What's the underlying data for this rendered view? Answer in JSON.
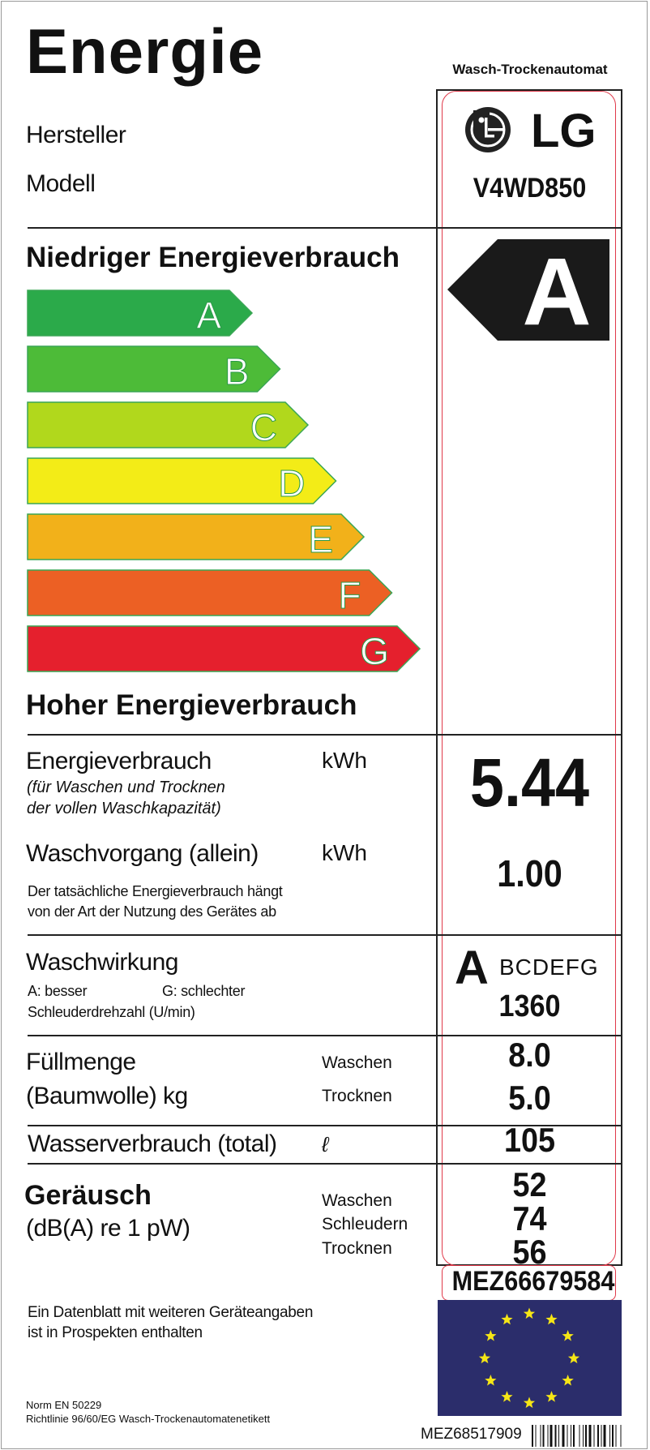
{
  "header": {
    "title": "Energie",
    "appliance_type": "Wasch-Trockenautomat"
  },
  "manufacturer": {
    "label": "Hersteller",
    "value": "LG"
  },
  "model": {
    "label": "Modell",
    "value": "V4WD850"
  },
  "scale": {
    "top_label": "Niedriger Energieverbrauch",
    "bottom_label": "Hoher Energieverbrauch",
    "classes": [
      {
        "letter": "A",
        "color": "#2baa4a"
      },
      {
        "letter": "B",
        "color": "#4dbb38"
      },
      {
        "letter": "C",
        "color": "#b1d81c"
      },
      {
        "letter": "D",
        "color": "#f3ec17"
      },
      {
        "letter": "E",
        "color": "#f2b11a"
      },
      {
        "letter": "F",
        "color": "#ec6024"
      },
      {
        "letter": "G",
        "color": "#e5202d"
      }
    ],
    "rating": "A"
  },
  "energy": {
    "label": "Energieverbrauch",
    "unit": "kWh",
    "note_line1": "(für Waschen und Trocknen",
    "note_line2": "der vollen Waschkapazität)",
    "value": "5.44"
  },
  "wash_only": {
    "label": "Waschvorgang (allein)",
    "unit": "kWh",
    "value": "1.00",
    "note_line1": "Der tatsächliche Energieverbrauch hängt",
    "note_line2": "von der Art der Nutzung des Gerätes ab"
  },
  "wash_performance": {
    "label": "Waschwirkung",
    "better": "A: besser",
    "worse": "G: schlechter",
    "rating": "A",
    "others": "BCDEFG",
    "spin_label": "Schleuderdrehzahl (U/min)",
    "spin_value": "1360"
  },
  "capacity": {
    "label1": "Füllmenge",
    "label2": "(Baumwolle) kg",
    "wash_label": "Waschen",
    "dry_label": "Trocknen",
    "wash_value": "8.0",
    "dry_value": "5.0"
  },
  "water": {
    "label": "Wasserverbrauch (total)",
    "unit": "ℓ",
    "value": "105"
  },
  "noise": {
    "label1": "Geräusch",
    "label2": "(dB(A) re 1 pW)",
    "wash_label": "Waschen",
    "spin_label": "Schleudern",
    "dry_label": "Trocknen",
    "wash_value": "52",
    "spin_value": "74",
    "dry_value": "56"
  },
  "part_number": "MEZ66679584",
  "footer": {
    "datasheet_line1": "Ein Datenblatt mit weiteren Geräteangaben",
    "datasheet_line2": "ist in Prospekten enthalten",
    "norm": "Norm EN 50229",
    "directive": "Richtlinie 96/60/EG Wasch-Trockenautomatenetikett",
    "barcode_text": "MEZ68517909"
  },
  "colors": {
    "eu_blue": "#2b2d6b",
    "eu_star": "#f6e616",
    "accent_red": "#e0394a"
  }
}
